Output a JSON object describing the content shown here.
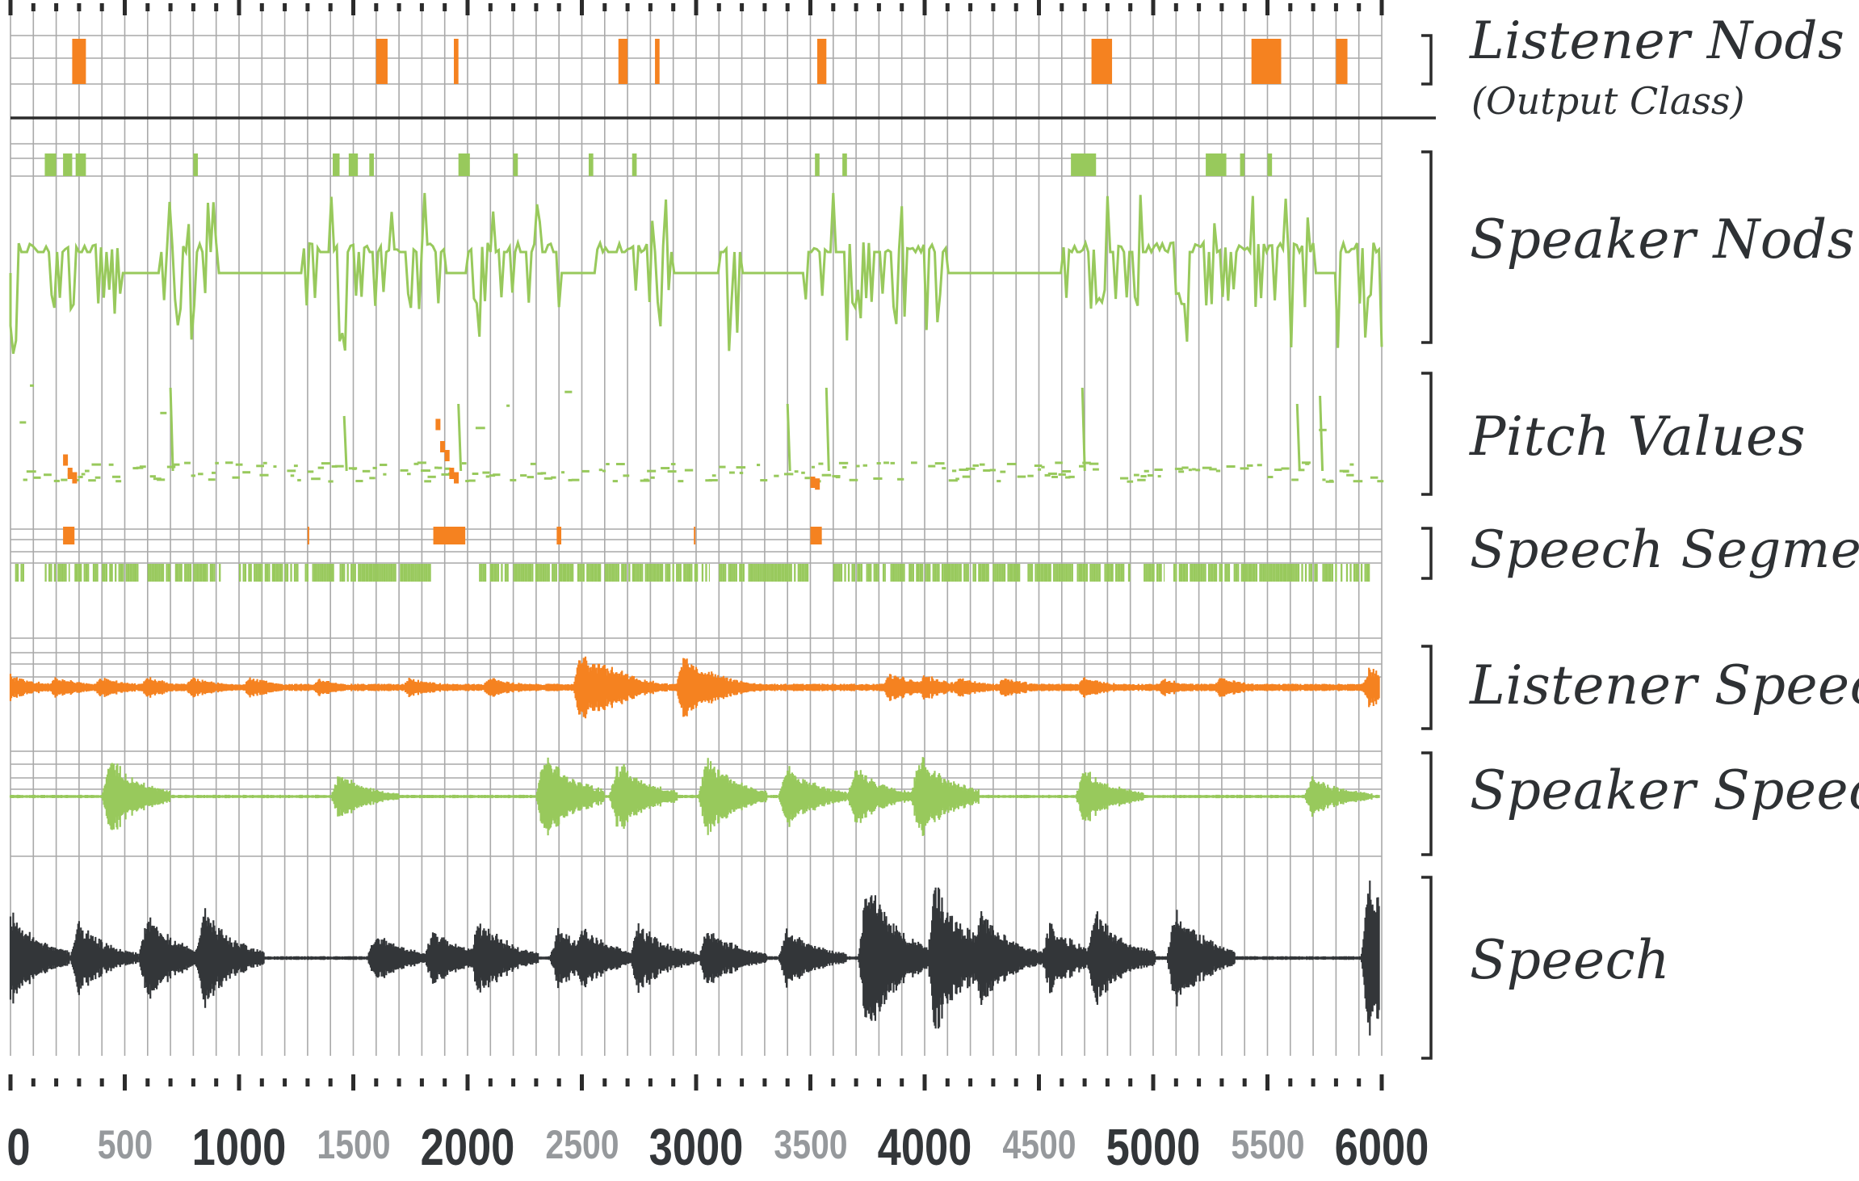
{
  "colors": {
    "orange": "#f58220",
    "green": "#98c95c",
    "dark": "#333639",
    "grid": "#a9a9a9",
    "major_tick_label": "#333639",
    "minor_tick_label": "#96999c"
  },
  "chart_data": {
    "type": "timeline",
    "xlim": [
      0,
      6000
    ],
    "x_ticks": [
      {
        "value": 0,
        "label": "0",
        "style": "major"
      },
      {
        "value": 500,
        "label": "500",
        "style": "minor"
      },
      {
        "value": 1000,
        "label": "1000",
        "style": "major"
      },
      {
        "value": 1500,
        "label": "1500",
        "style": "minor"
      },
      {
        "value": 2000,
        "label": "2000",
        "style": "major"
      },
      {
        "value": 2500,
        "label": "2500",
        "style": "minor"
      },
      {
        "value": 3000,
        "label": "3000",
        "style": "major"
      },
      {
        "value": 3500,
        "label": "3500",
        "style": "minor"
      },
      {
        "value": 4000,
        "label": "4000",
        "style": "major"
      },
      {
        "value": 4500,
        "label": "4500",
        "style": "minor"
      },
      {
        "value": 5000,
        "label": "5000",
        "style": "major"
      },
      {
        "value": 5500,
        "label": "5500",
        "style": "minor"
      },
      {
        "value": 6000,
        "label": "6000",
        "style": "major"
      }
    ],
    "grid_step": 100,
    "tracks": [
      {
        "name": "Listener Nods",
        "subtitle": "(Output Class)",
        "kind": "events",
        "color": "orange",
        "events": [
          [
            270,
            330
          ],
          [
            1600,
            1650
          ],
          [
            1940,
            1960
          ],
          [
            2660,
            2700
          ],
          [
            2820,
            2840
          ],
          [
            3530,
            3570
          ],
          [
            4730,
            4820
          ],
          [
            5430,
            5560
          ],
          [
            5800,
            5850
          ]
        ]
      },
      {
        "name": "Speaker Nods",
        "kind": "events_and_signal",
        "color": "green",
        "events": [
          [
            150,
            200
          ],
          [
            230,
            270
          ],
          [
            285,
            330
          ],
          [
            800,
            820
          ],
          [
            1410,
            1440
          ],
          [
            1480,
            1520
          ],
          [
            1570,
            1590
          ],
          [
            1960,
            2010
          ],
          [
            2200,
            2220
          ],
          [
            2530,
            2550
          ],
          [
            2720,
            2740
          ],
          [
            3520,
            3540
          ],
          [
            3640,
            3660
          ],
          [
            4640,
            4750
          ],
          [
            5230,
            5320
          ],
          [
            5380,
            5400
          ],
          [
            5500,
            5520
          ]
        ],
        "signal_active": [
          [
            0,
            480
          ],
          [
            650,
            900
          ],
          [
            1280,
            1900
          ],
          [
            2000,
            2400
          ],
          [
            2560,
            2900
          ],
          [
            3100,
            3200
          ],
          [
            3480,
            4100
          ],
          [
            4600,
            5700
          ],
          [
            5800,
            6000
          ]
        ]
      },
      {
        "name": "Pitch Values",
        "kind": "scatter",
        "color": "green",
        "listener_points": [
          [
            230,
            0.45
          ],
          [
            250,
            0.3
          ],
          [
            270,
            0.25
          ],
          [
            1860,
            0.85
          ],
          [
            1880,
            0.6
          ],
          [
            1900,
            0.5
          ],
          [
            1920,
            0.3
          ],
          [
            1940,
            0.25
          ],
          [
            3500,
            0.2
          ],
          [
            3520,
            0.18
          ]
        ]
      },
      {
        "name": "Speech Segments",
        "kind": "segments",
        "listener_segments": [
          [
            230,
            280
          ],
          [
            1850,
            1990
          ],
          [
            2390,
            2410
          ],
          [
            3500,
            3550
          ],
          [
            1300,
            1305
          ],
          [
            2990,
            2995
          ]
        ],
        "speaker_segments": [
          [
            20,
            60
          ],
          [
            150,
            260
          ],
          [
            280,
            560
          ],
          [
            600,
            700
          ],
          [
            720,
            920
          ],
          [
            1000,
            1260
          ],
          [
            1280,
            1420
          ],
          [
            1440,
            1840
          ],
          [
            2050,
            2180
          ],
          [
            2200,
            3060
          ],
          [
            3100,
            3500
          ],
          [
            3600,
            3830
          ],
          [
            3850,
            4420
          ],
          [
            4450,
            4900
          ],
          [
            4950,
            5050
          ],
          [
            5080,
            5200
          ],
          [
            5200,
            5720
          ],
          [
            5740,
            5950
          ]
        ]
      },
      {
        "name": "Listener Speech",
        "kind": "waveform",
        "color": "orange",
        "bursts": [
          [
            0,
            0.3
          ],
          [
            200,
            0.25
          ],
          [
            400,
            0.25
          ],
          [
            600,
            0.25
          ],
          [
            800,
            0.25
          ],
          [
            1050,
            0.25
          ],
          [
            1350,
            0.2
          ],
          [
            1750,
            0.25
          ],
          [
            2100,
            0.25
          ],
          [
            2500,
            0.85
          ],
          [
            2580,
            0.65
          ],
          [
            2660,
            0.45
          ],
          [
            2950,
            0.8
          ],
          [
            3050,
            0.45
          ],
          [
            3850,
            0.35
          ],
          [
            4000,
            0.3
          ],
          [
            4150,
            0.25
          ],
          [
            4350,
            0.25
          ],
          [
            4700,
            0.25
          ],
          [
            5050,
            0.2
          ],
          [
            5300,
            0.25
          ],
          [
            5950,
            0.5
          ]
        ]
      },
      {
        "name": "Speaker Speech",
        "kind": "waveform",
        "color": "green",
        "bursts": [
          [
            440,
            0.75
          ],
          [
            1440,
            0.45
          ],
          [
            2340,
            0.9
          ],
          [
            2660,
            0.7
          ],
          [
            3050,
            0.8
          ],
          [
            3400,
            0.6
          ],
          [
            3700,
            0.6
          ],
          [
            3980,
            0.85
          ],
          [
            4700,
            0.55
          ],
          [
            5700,
            0.4
          ]
        ]
      },
      {
        "name": "Speech",
        "kind": "waveform",
        "color": "dark",
        "bursts": [
          [
            0,
            0.55
          ],
          [
            300,
            0.4
          ],
          [
            600,
            0.5
          ],
          [
            850,
            0.55
          ],
          [
            1600,
            0.3
          ],
          [
            1850,
            0.35
          ],
          [
            2050,
            0.45
          ],
          [
            2400,
            0.35
          ],
          [
            2500,
            0.4
          ],
          [
            2750,
            0.4
          ],
          [
            3050,
            0.35
          ],
          [
            3400,
            0.35
          ],
          [
            3750,
            0.95
          ],
          [
            4050,
            0.9
          ],
          [
            4250,
            0.55
          ],
          [
            4550,
            0.4
          ],
          [
            4750,
            0.55
          ],
          [
            5100,
            0.6
          ],
          [
            5950,
            1.0
          ]
        ]
      }
    ]
  }
}
